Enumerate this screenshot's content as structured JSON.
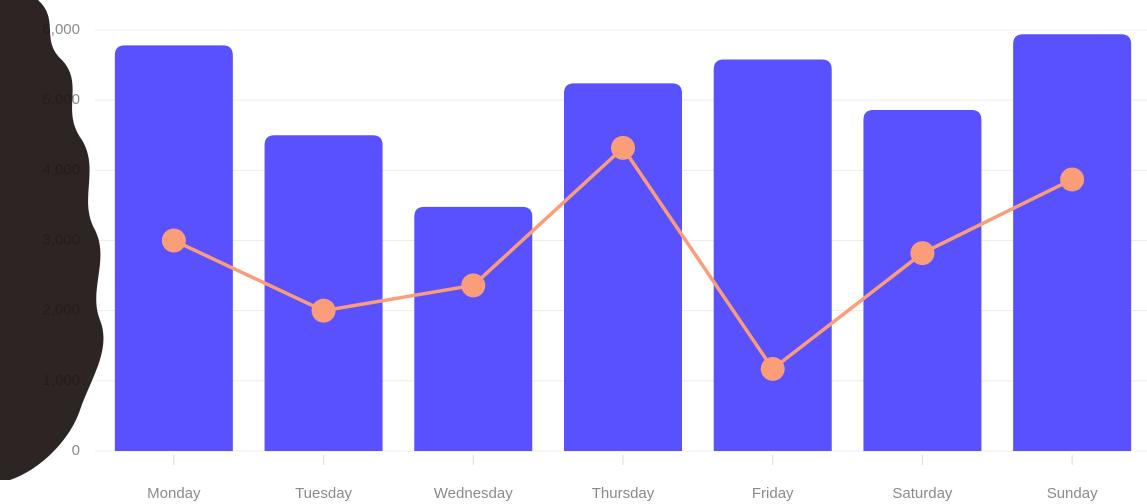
{
  "chart_data": {
    "type": "bar",
    "categories": [
      "Monday",
      "Tuesday",
      "Wednesday",
      "Thursday",
      "Friday",
      "Saturday",
      "Sunday"
    ],
    "series": [
      {
        "type": "bar",
        "color": "#5851fd",
        "values": [
          5780,
          4500,
          3480,
          5240,
          5580,
          4860,
          5940
        ]
      },
      {
        "type": "line",
        "color": "#fb9d78",
        "values": [
          3000,
          2000,
          2360,
          4320,
          1170,
          2820,
          3870
        ]
      }
    ],
    "ylim": [
      0,
      6000
    ],
    "yticks": [
      0,
      {
        "value": 1000,
        "label": "1,000"
      },
      {
        "value": 2000,
        "label": "2,000"
      },
      {
        "value": 3000,
        "label": "3,000"
      },
      {
        "value": 4000,
        "label": "4,000"
      },
      {
        "value": 5000,
        "label": "5,000"
      },
      {
        "value": 6000,
        "label": "6,000"
      }
    ],
    "grid": true
  }
}
